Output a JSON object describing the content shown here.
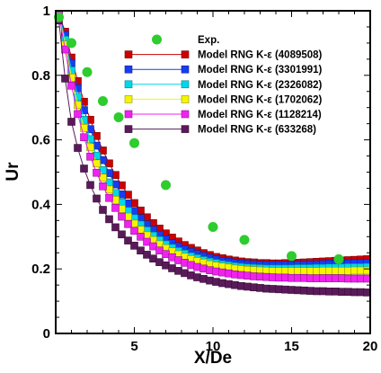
{
  "chart_data": {
    "type": "scatter",
    "xlabel": "X/De",
    "ylabel": "Ur",
    "xlim": [
      0,
      20
    ],
    "ylim": [
      0,
      1
    ],
    "xticks": [
      "5",
      "10",
      "15",
      "20"
    ],
    "yticks": [
      "0",
      "0.2",
      "0.4",
      "0.6",
      "0.8",
      "1"
    ],
    "grid": false,
    "legend_position": "top-right",
    "experiment": {
      "name": "Exp.",
      "color": "#2ecc2e",
      "marker": "circle",
      "x": [
        0.2,
        1.0,
        2.0,
        3.0,
        4.0,
        5.0,
        7.0,
        10.0,
        12.0,
        15.0,
        18.0
      ],
      "y": [
        0.98,
        0.9,
        0.81,
        0.72,
        0.67,
        0.59,
        0.46,
        0.33,
        0.29,
        0.24,
        0.23
      ]
    },
    "series": [
      {
        "name": "Model RNG K-ε  (4089508)",
        "color": "#cc0000",
        "marker": "square",
        "x": [
          0.2,
          0.6,
          1.0,
          1.4,
          1.8,
          2.2,
          2.6,
          3.0,
          3.4,
          3.8,
          4.2,
          4.6,
          5.0,
          5.4,
          5.8,
          6.2,
          6.6,
          7.0,
          7.4,
          7.8,
          8.2,
          8.6,
          9.0,
          9.4,
          9.8,
          10.2,
          10.6,
          11.0,
          11.4,
          11.8,
          12.2,
          12.6,
          13.0,
          13.4,
          13.8,
          14.2,
          14.6,
          15.0,
          15.4,
          15.8,
          16.2,
          16.6,
          17.0,
          17.4,
          17.8,
          18.2,
          18.6,
          19.0,
          19.4,
          19.8
        ],
        "y": [
          0.99,
          0.935,
          0.855,
          0.782,
          0.718,
          0.662,
          0.612,
          0.567,
          0.527,
          0.491,
          0.459,
          0.43,
          0.404,
          0.381,
          0.36,
          0.342,
          0.325,
          0.31,
          0.297,
          0.285,
          0.274,
          0.265,
          0.257,
          0.249,
          0.243,
          0.237,
          0.233,
          0.229,
          0.226,
          0.223,
          0.221,
          0.22,
          0.218,
          0.218,
          0.217,
          0.217,
          0.218,
          0.218,
          0.219,
          0.22,
          0.221,
          0.222,
          0.223,
          0.224,
          0.225,
          0.226,
          0.227,
          0.228,
          0.229,
          0.23
        ]
      },
      {
        "name": "Model RNG K-ε  (3301991)",
        "color": "#1a3cf0",
        "marker": "square",
        "x": [
          0.2,
          0.6,
          1.0,
          1.4,
          1.8,
          2.2,
          2.6,
          3.0,
          3.4,
          3.8,
          4.2,
          4.6,
          5.0,
          5.4,
          5.8,
          6.2,
          6.6,
          7.0,
          7.4,
          7.8,
          8.2,
          8.6,
          9.0,
          9.4,
          9.8,
          10.2,
          10.6,
          11.0,
          11.4,
          11.8,
          12.2,
          12.6,
          13.0,
          13.4,
          13.8,
          14.2,
          14.6,
          15.0,
          15.4,
          15.8,
          16.2,
          16.6,
          17.0,
          17.4,
          17.8,
          18.2,
          18.6,
          19.0,
          19.4,
          19.8
        ],
        "y": [
          0.99,
          0.925,
          0.838,
          0.76,
          0.692,
          0.633,
          0.582,
          0.537,
          0.497,
          0.462,
          0.431,
          0.403,
          0.379,
          0.357,
          0.338,
          0.321,
          0.306,
          0.292,
          0.28,
          0.27,
          0.261,
          0.253,
          0.246,
          0.24,
          0.234,
          0.229,
          0.225,
          0.222,
          0.219,
          0.217,
          0.215,
          0.214,
          0.213,
          0.212,
          0.212,
          0.212,
          0.212,
          0.212,
          0.213,
          0.213,
          0.214,
          0.214,
          0.215,
          0.216,
          0.216,
          0.217,
          0.217,
          0.218,
          0.218,
          0.219
        ]
      },
      {
        "name": "Model RNG K-ε  (2326082)",
        "color": "#00d8e8",
        "marker": "square",
        "x": [
          0.2,
          0.6,
          1.0,
          1.4,
          1.8,
          2.2,
          2.6,
          3.0,
          3.4,
          3.8,
          4.2,
          4.6,
          5.0,
          5.4,
          5.8,
          6.2,
          6.6,
          7.0,
          7.4,
          7.8,
          8.2,
          8.6,
          9.0,
          9.4,
          9.8,
          10.2,
          10.6,
          11.0,
          11.4,
          11.8,
          12.2,
          12.6,
          13.0,
          13.4,
          13.8,
          14.2,
          14.6,
          15.0,
          15.4,
          15.8,
          16.2,
          16.6,
          17.0,
          17.4,
          17.8,
          18.2,
          18.6,
          19.0,
          19.4,
          19.8
        ],
        "y": [
          0.99,
          0.91,
          0.815,
          0.733,
          0.662,
          0.602,
          0.551,
          0.506,
          0.468,
          0.435,
          0.406,
          0.38,
          0.357,
          0.337,
          0.319,
          0.303,
          0.289,
          0.276,
          0.265,
          0.255,
          0.247,
          0.239,
          0.233,
          0.227,
          0.222,
          0.218,
          0.214,
          0.211,
          0.208,
          0.206,
          0.204,
          0.203,
          0.202,
          0.201,
          0.201,
          0.201,
          0.201,
          0.201,
          0.202,
          0.202,
          0.202,
          0.203,
          0.203,
          0.204,
          0.204,
          0.204,
          0.205,
          0.205,
          0.205,
          0.206
        ]
      },
      {
        "name": "Model RNG K-ε  (1702062)",
        "color": "#f5f500",
        "marker": "square",
        "x": [
          0.2,
          0.6,
          1.0,
          1.4,
          1.8,
          2.2,
          2.6,
          3.0,
          3.4,
          3.8,
          4.2,
          4.6,
          5.0,
          5.4,
          5.8,
          6.2,
          6.6,
          7.0,
          7.4,
          7.8,
          8.2,
          8.6,
          9.0,
          9.4,
          9.8,
          10.2,
          10.6,
          11.0,
          11.4,
          11.8,
          12.2,
          12.6,
          13.0,
          13.4,
          13.8,
          14.2,
          14.6,
          15.0,
          15.4,
          15.8,
          16.2,
          16.6,
          17.0,
          17.4,
          17.8,
          18.2,
          18.6,
          19.0,
          19.4,
          19.8
        ],
        "y": [
          0.99,
          0.895,
          0.793,
          0.708,
          0.637,
          0.577,
          0.527,
          0.483,
          0.446,
          0.414,
          0.386,
          0.362,
          0.34,
          0.321,
          0.304,
          0.289,
          0.276,
          0.264,
          0.254,
          0.245,
          0.237,
          0.23,
          0.224,
          0.219,
          0.214,
          0.21,
          0.207,
          0.204,
          0.201,
          0.199,
          0.197,
          0.196,
          0.195,
          0.194,
          0.193,
          0.193,
          0.193,
          0.193,
          0.193,
          0.193,
          0.193,
          0.193,
          0.194,
          0.194,
          0.194,
          0.194,
          0.194,
          0.195,
          0.195,
          0.195
        ]
      },
      {
        "name": "Model RNG K-ε  (1128214)",
        "color": "#f022f0",
        "marker": "square",
        "x": [
          0.2,
          0.6,
          1.0,
          1.4,
          1.8,
          2.2,
          2.6,
          3.0,
          3.4,
          3.8,
          4.2,
          4.6,
          5.0,
          5.4,
          5.8,
          6.2,
          6.6,
          7.0,
          7.4,
          7.8,
          8.2,
          8.6,
          9.0,
          9.4,
          9.8,
          10.2,
          10.6,
          11.0,
          11.4,
          11.8,
          12.2,
          12.6,
          13.0,
          13.4,
          13.8,
          14.2,
          14.6,
          15.0,
          15.4,
          15.8,
          16.2,
          16.6,
          17.0,
          17.4,
          17.8,
          18.2,
          18.6,
          19.0,
          19.4,
          19.8
        ],
        "y": [
          0.99,
          0.88,
          0.768,
          0.68,
          0.608,
          0.548,
          0.498,
          0.456,
          0.42,
          0.389,
          0.362,
          0.339,
          0.318,
          0.3,
          0.284,
          0.27,
          0.257,
          0.246,
          0.236,
          0.227,
          0.219,
          0.212,
          0.206,
          0.201,
          0.196,
          0.192,
          0.189,
          0.186,
          0.183,
          0.181,
          0.179,
          0.177,
          0.176,
          0.175,
          0.174,
          0.173,
          0.173,
          0.172,
          0.172,
          0.172,
          0.171,
          0.171,
          0.171,
          0.171,
          0.171,
          0.171,
          0.17,
          0.17,
          0.17,
          0.17
        ]
      },
      {
        "name": "Model RNG K-ε  (633268)",
        "color": "#5a1a5a",
        "marker": "square",
        "x": [
          0.2,
          0.6,
          1.0,
          1.4,
          1.8,
          2.2,
          2.6,
          3.0,
          3.4,
          3.8,
          4.2,
          4.6,
          5.0,
          5.4,
          5.8,
          6.2,
          6.6,
          7.0,
          7.4,
          7.8,
          8.2,
          8.6,
          9.0,
          9.4,
          9.8,
          10.2,
          10.6,
          11.0,
          11.4,
          11.8,
          12.2,
          12.6,
          13.0,
          13.4,
          13.8,
          14.2,
          14.6,
          15.0,
          15.4,
          15.8,
          16.2,
          16.6,
          17.0,
          17.4,
          17.8,
          18.2,
          18.6,
          19.0,
          19.4,
          19.8
        ],
        "y": [
          0.97,
          0.79,
          0.656,
          0.575,
          0.511,
          0.46,
          0.418,
          0.383,
          0.354,
          0.329,
          0.307,
          0.288,
          0.272,
          0.257,
          0.244,
          0.232,
          0.221,
          0.211,
          0.202,
          0.194,
          0.187,
          0.18,
          0.174,
          0.169,
          0.164,
          0.16,
          0.156,
          0.153,
          0.15,
          0.147,
          0.145,
          0.143,
          0.141,
          0.139,
          0.138,
          0.137,
          0.136,
          0.135,
          0.134,
          0.133,
          0.132,
          0.131,
          0.131,
          0.13,
          0.13,
          0.129,
          0.129,
          0.128,
          0.128,
          0.127
        ]
      }
    ]
  }
}
